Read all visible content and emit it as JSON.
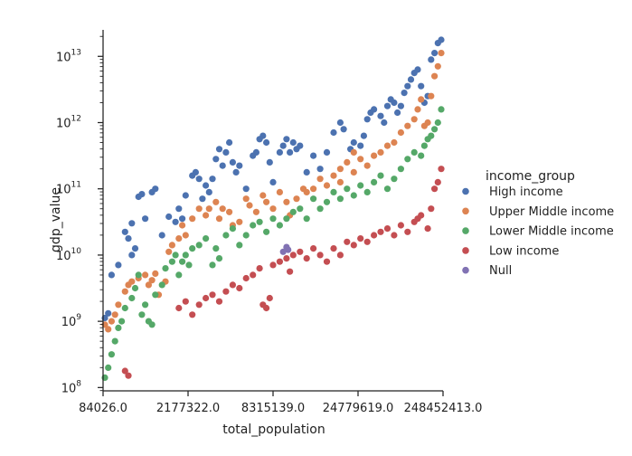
{
  "chart_data": {
    "type": "scatter",
    "xlabel": "total_population",
    "ylabel": "gdp_value",
    "y_scale": "log",
    "x_tick_labels": [
      "84026.0",
      "2177322.0",
      "8315139.0",
      "24779619.0",
      "248452413.0"
    ],
    "y_ticks": [
      {
        "base": "10",
        "exp": "8"
      },
      {
        "base": "10",
        "exp": "9"
      },
      {
        "base": "10",
        "exp": "10"
      },
      {
        "base": "10",
        "exp": "11"
      },
      {
        "base": "10",
        "exp": "12"
      },
      {
        "base": "10",
        "exp": "13"
      }
    ],
    "ylim_exp": [
      7.95,
      13.4
    ],
    "legend": {
      "title": "income_group",
      "placement": "right"
    },
    "series": [
      {
        "name": "High income",
        "color": "#4c72b0",
        "points": [
          [
            0.0,
            9.05
          ],
          [
            0.01,
            9.12
          ],
          [
            0.02,
            9.7
          ],
          [
            0.04,
            9.85
          ],
          [
            0.06,
            10.35
          ],
          [
            0.07,
            10.25
          ],
          [
            0.08,
            10.0
          ],
          [
            0.09,
            10.1
          ],
          [
            0.08,
            10.48
          ],
          [
            0.1,
            10.88
          ],
          [
            0.11,
            10.92
          ],
          [
            0.12,
            10.55
          ],
          [
            0.14,
            10.95
          ],
          [
            0.15,
            11.0
          ],
          [
            0.17,
            10.3
          ],
          [
            0.19,
            10.58
          ],
          [
            0.21,
            10.5
          ],
          [
            0.22,
            10.7
          ],
          [
            0.23,
            10.55
          ],
          [
            0.24,
            10.9
          ],
          [
            0.26,
            11.2
          ],
          [
            0.27,
            11.25
          ],
          [
            0.28,
            11.15
          ],
          [
            0.29,
            10.85
          ],
          [
            0.3,
            11.05
          ],
          [
            0.31,
            10.95
          ],
          [
            0.32,
            11.15
          ],
          [
            0.33,
            11.45
          ],
          [
            0.34,
            11.6
          ],
          [
            0.35,
            11.35
          ],
          [
            0.36,
            11.55
          ],
          [
            0.37,
            11.7
          ],
          [
            0.38,
            11.4
          ],
          [
            0.39,
            11.25
          ],
          [
            0.4,
            11.35
          ],
          [
            0.42,
            11.0
          ],
          [
            0.44,
            11.5
          ],
          [
            0.45,
            11.55
          ],
          [
            0.46,
            11.75
          ],
          [
            0.47,
            11.8
          ],
          [
            0.48,
            11.7
          ],
          [
            0.49,
            11.4
          ],
          [
            0.5,
            11.1
          ],
          [
            0.52,
            11.55
          ],
          [
            0.53,
            11.65
          ],
          [
            0.54,
            11.75
          ],
          [
            0.55,
            11.55
          ],
          [
            0.56,
            11.7
          ],
          [
            0.57,
            11.6
          ],
          [
            0.58,
            11.65
          ],
          [
            0.6,
            11.25
          ],
          [
            0.62,
            11.5
          ],
          [
            0.64,
            11.3
          ],
          [
            0.66,
            11.55
          ],
          [
            0.68,
            11.85
          ],
          [
            0.7,
            12.0
          ],
          [
            0.71,
            11.9
          ],
          [
            0.73,
            11.6
          ],
          [
            0.74,
            11.7
          ],
          [
            0.76,
            11.65
          ],
          [
            0.77,
            11.8
          ],
          [
            0.78,
            12.05
          ],
          [
            0.79,
            12.15
          ],
          [
            0.8,
            12.2
          ],
          [
            0.82,
            12.1
          ],
          [
            0.83,
            12.0
          ],
          [
            0.84,
            12.25
          ],
          [
            0.85,
            12.35
          ],
          [
            0.86,
            12.3
          ],
          [
            0.87,
            12.15
          ],
          [
            0.88,
            12.25
          ],
          [
            0.89,
            12.45
          ],
          [
            0.9,
            12.55
          ],
          [
            0.91,
            12.65
          ],
          [
            0.92,
            12.75
          ],
          [
            0.93,
            12.8
          ],
          [
            0.94,
            12.55
          ],
          [
            0.95,
            12.3
          ],
          [
            0.96,
            12.4
          ],
          [
            0.97,
            12.95
          ],
          [
            0.98,
            13.05
          ],
          [
            0.99,
            13.2
          ],
          [
            1.0,
            13.25
          ]
        ]
      },
      {
        "name": "Upper Middle income",
        "color": "#dd8452",
        "points": [
          [
            0.0,
            8.95
          ],
          [
            0.01,
            8.88
          ],
          [
            0.02,
            9.0
          ],
          [
            0.03,
            9.1
          ],
          [
            0.04,
            9.25
          ],
          [
            0.06,
            9.45
          ],
          [
            0.07,
            9.55
          ],
          [
            0.08,
            9.6
          ],
          [
            0.1,
            9.65
          ],
          [
            0.12,
            9.7
          ],
          [
            0.13,
            9.55
          ],
          [
            0.14,
            9.62
          ],
          [
            0.15,
            9.72
          ],
          [
            0.16,
            9.4
          ],
          [
            0.18,
            9.6
          ],
          [
            0.19,
            10.05
          ],
          [
            0.2,
            10.15
          ],
          [
            0.22,
            10.25
          ],
          [
            0.23,
            10.45
          ],
          [
            0.24,
            10.3
          ],
          [
            0.26,
            10.55
          ],
          [
            0.28,
            10.7
          ],
          [
            0.3,
            10.6
          ],
          [
            0.31,
            10.7
          ],
          [
            0.33,
            10.8
          ],
          [
            0.34,
            10.55
          ],
          [
            0.35,
            10.7
          ],
          [
            0.37,
            10.65
          ],
          [
            0.38,
            10.45
          ],
          [
            0.4,
            10.5
          ],
          [
            0.42,
            10.85
          ],
          [
            0.43,
            10.75
          ],
          [
            0.45,
            10.65
          ],
          [
            0.47,
            10.9
          ],
          [
            0.48,
            10.8
          ],
          [
            0.5,
            10.7
          ],
          [
            0.52,
            10.95
          ],
          [
            0.54,
            10.8
          ],
          [
            0.55,
            10.6
          ],
          [
            0.57,
            10.85
          ],
          [
            0.59,
            11.0
          ],
          [
            0.6,
            10.95
          ],
          [
            0.62,
            11.0
          ],
          [
            0.64,
            11.15
          ],
          [
            0.66,
            11.05
          ],
          [
            0.68,
            11.2
          ],
          [
            0.7,
            11.3
          ],
          [
            0.72,
            11.4
          ],
          [
            0.74,
            11.25
          ],
          [
            0.76,
            11.45
          ],
          [
            0.78,
            11.35
          ],
          [
            0.8,
            11.5
          ],
          [
            0.82,
            11.55
          ],
          [
            0.84,
            11.65
          ],
          [
            0.86,
            11.7
          ],
          [
            0.88,
            11.85
          ],
          [
            0.9,
            11.95
          ],
          [
            0.92,
            12.05
          ],
          [
            0.93,
            12.2
          ],
          [
            0.94,
            12.35
          ],
          [
            0.95,
            11.95
          ],
          [
            0.96,
            12.0
          ],
          [
            0.97,
            12.4
          ],
          [
            0.98,
            12.7
          ],
          [
            0.99,
            12.85
          ],
          [
            1.0,
            13.05
          ],
          [
            0.7,
            11.1
          ],
          [
            0.74,
            11.55
          ]
        ]
      },
      {
        "name": "Lower Middle income",
        "color": "#55a868",
        "points": [
          [
            0.0,
            8.15
          ],
          [
            0.01,
            8.3
          ],
          [
            0.02,
            8.5
          ],
          [
            0.03,
            8.7
          ],
          [
            0.04,
            8.9
          ],
          [
            0.05,
            9.0
          ],
          [
            0.06,
            9.2
          ],
          [
            0.08,
            9.35
          ],
          [
            0.09,
            9.5
          ],
          [
            0.1,
            9.7
          ],
          [
            0.11,
            9.1
          ],
          [
            0.12,
            9.25
          ],
          [
            0.13,
            9.0
          ],
          [
            0.14,
            8.95
          ],
          [
            0.15,
            9.4
          ],
          [
            0.17,
            9.55
          ],
          [
            0.18,
            9.8
          ],
          [
            0.2,
            9.9
          ],
          [
            0.21,
            10.0
          ],
          [
            0.22,
            9.7
          ],
          [
            0.23,
            9.9
          ],
          [
            0.24,
            10.0
          ],
          [
            0.25,
            9.85
          ],
          [
            0.26,
            10.1
          ],
          [
            0.28,
            10.15
          ],
          [
            0.3,
            10.25
          ],
          [
            0.32,
            9.85
          ],
          [
            0.33,
            10.1
          ],
          [
            0.34,
            9.95
          ],
          [
            0.36,
            10.3
          ],
          [
            0.38,
            10.4
          ],
          [
            0.4,
            10.15
          ],
          [
            0.42,
            10.3
          ],
          [
            0.44,
            10.45
          ],
          [
            0.46,
            10.5
          ],
          [
            0.48,
            10.35
          ],
          [
            0.5,
            10.55
          ],
          [
            0.52,
            10.45
          ],
          [
            0.54,
            10.55
          ],
          [
            0.56,
            10.65
          ],
          [
            0.58,
            10.7
          ],
          [
            0.6,
            10.55
          ],
          [
            0.62,
            10.85
          ],
          [
            0.64,
            10.7
          ],
          [
            0.66,
            10.8
          ],
          [
            0.68,
            10.95
          ],
          [
            0.7,
            10.85
          ],
          [
            0.72,
            11.0
          ],
          [
            0.74,
            10.9
          ],
          [
            0.76,
            11.05
          ],
          [
            0.78,
            10.95
          ],
          [
            0.8,
            11.1
          ],
          [
            0.82,
            11.2
          ],
          [
            0.84,
            11.0
          ],
          [
            0.86,
            11.15
          ],
          [
            0.88,
            11.3
          ],
          [
            0.9,
            11.45
          ],
          [
            0.92,
            11.55
          ],
          [
            0.94,
            11.5
          ],
          [
            0.95,
            11.65
          ],
          [
            0.96,
            11.75
          ],
          [
            0.97,
            11.8
          ],
          [
            0.98,
            11.9
          ],
          [
            0.99,
            12.0
          ],
          [
            1.0,
            12.2
          ]
        ]
      },
      {
        "name": "Low income",
        "color": "#c44e52",
        "points": [
          [
            0.06,
            8.25
          ],
          [
            0.07,
            8.18
          ],
          [
            0.22,
            9.2
          ],
          [
            0.24,
            9.3
          ],
          [
            0.26,
            9.1
          ],
          [
            0.28,
            9.25
          ],
          [
            0.3,
            9.35
          ],
          [
            0.32,
            9.4
          ],
          [
            0.34,
            9.3
          ],
          [
            0.36,
            9.45
          ],
          [
            0.38,
            9.55
          ],
          [
            0.4,
            9.5
          ],
          [
            0.42,
            9.65
          ],
          [
            0.44,
            9.7
          ],
          [
            0.46,
            9.8
          ],
          [
            0.47,
            9.25
          ],
          [
            0.48,
            9.2
          ],
          [
            0.49,
            9.35
          ],
          [
            0.5,
            9.85
          ],
          [
            0.52,
            9.9
          ],
          [
            0.54,
            9.95
          ],
          [
            0.55,
            9.75
          ],
          [
            0.56,
            10.0
          ],
          [
            0.58,
            10.05
          ],
          [
            0.6,
            9.95
          ],
          [
            0.62,
            10.1
          ],
          [
            0.64,
            10.0
          ],
          [
            0.66,
            9.9
          ],
          [
            0.68,
            10.1
          ],
          [
            0.7,
            10.0
          ],
          [
            0.72,
            10.2
          ],
          [
            0.74,
            10.15
          ],
          [
            0.76,
            10.25
          ],
          [
            0.78,
            10.2
          ],
          [
            0.8,
            10.3
          ],
          [
            0.82,
            10.35
          ],
          [
            0.84,
            10.4
          ],
          [
            0.86,
            10.3
          ],
          [
            0.88,
            10.45
          ],
          [
            0.9,
            10.35
          ],
          [
            0.92,
            10.5
          ],
          [
            0.93,
            10.55
          ],
          [
            0.94,
            10.6
          ],
          [
            0.96,
            10.4
          ],
          [
            0.97,
            10.7
          ],
          [
            0.98,
            11.0
          ],
          [
            0.99,
            11.1
          ],
          [
            1.0,
            11.3
          ]
        ]
      },
      {
        "name": "Null",
        "color": "#8172b3",
        "points": [
          [
            0.53,
            10.05
          ],
          [
            0.54,
            10.12
          ],
          [
            0.545,
            10.08
          ]
        ]
      }
    ]
  }
}
